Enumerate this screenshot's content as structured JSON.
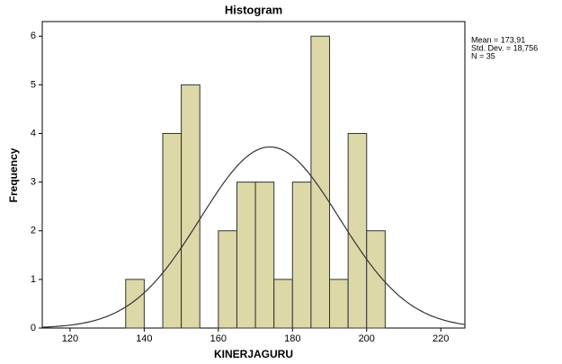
{
  "chart_data": {
    "type": "histogram",
    "title": "Histogram",
    "x_label": "KINERJAGURU",
    "y_label": "Frequency",
    "bins": [
      135,
      140,
      145,
      150,
      155,
      160,
      165,
      170,
      175,
      180,
      185,
      190,
      195,
      200,
      205
    ],
    "values": [
      1,
      0,
      4,
      5,
      0,
      2,
      3,
      3,
      1,
      3,
      6,
      1,
      4,
      2
    ],
    "color": "#dcd8a8",
    "edge_color": "#333333",
    "xlim": [
      112.5,
      226.5
    ],
    "xticks": [
      120,
      140,
      160,
      180,
      200,
      220
    ],
    "ylim": [
      0,
      6.3
    ],
    "yticks": [
      0,
      1,
      2,
      3,
      4,
      5,
      6
    ],
    "stats": [
      {
        "value": 173.91,
        "label": "Mean = 173,91"
      },
      {
        "value": 18.756,
        "label": "Std. Dev. = 18,756"
      },
      {
        "value": 35,
        "label": "N = 35"
      }
    ],
    "curve_color": "#333333"
  }
}
